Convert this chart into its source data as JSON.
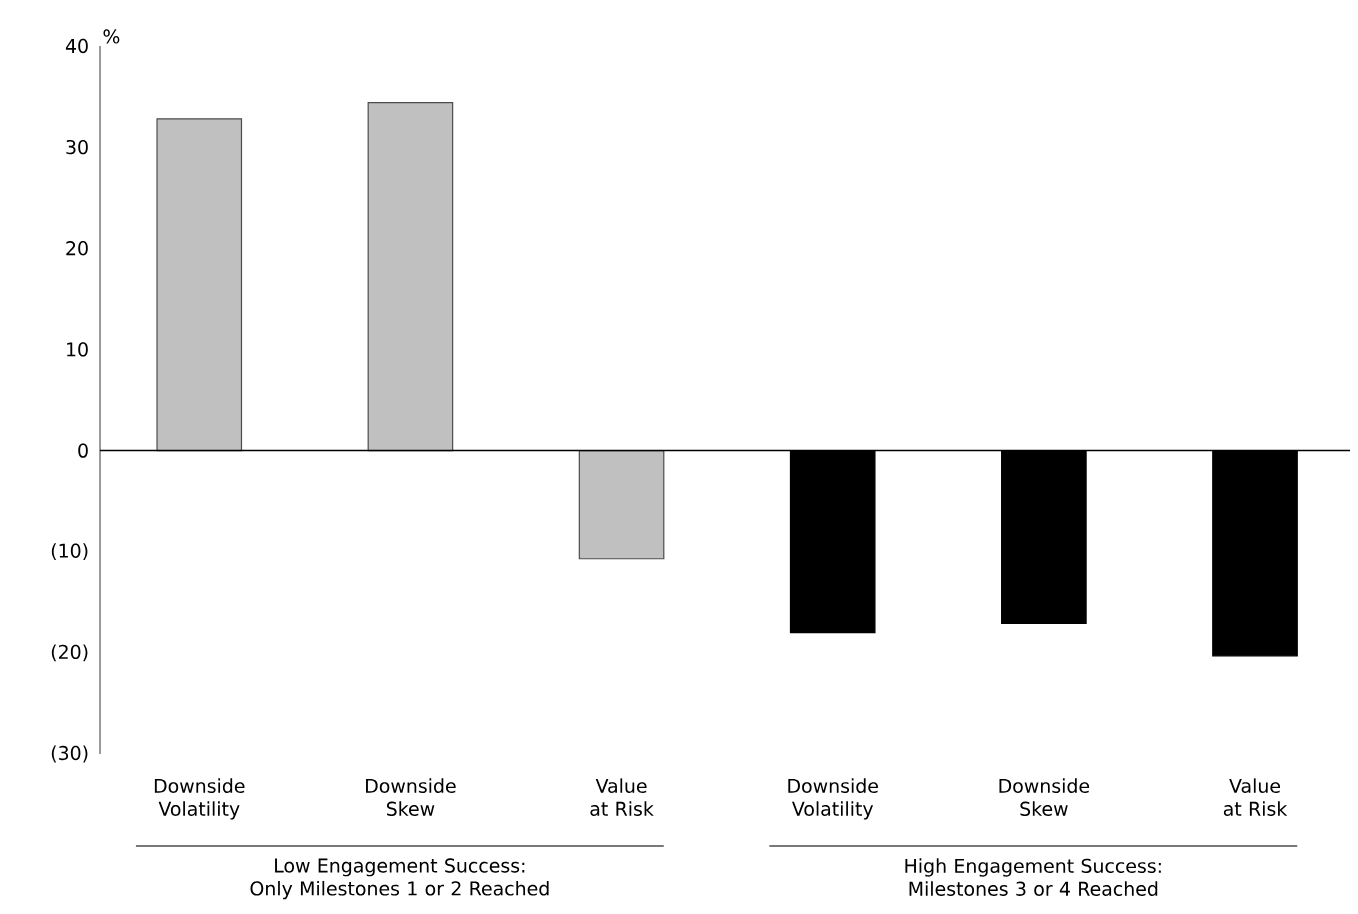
{
  "chart_data": {
    "type": "bar",
    "ylabel": "%",
    "categories": [
      "Downside Volatility",
      "Downside Skew",
      "Value at Risk",
      "Downside Volatility",
      "Downside Skew",
      "Value at Risk"
    ],
    "values": [
      32.8,
      34.4,
      -10.7,
      -18.0,
      -17.1,
      -20.3
    ],
    "colors": [
      "#c0c0c0",
      "#c0c0c0",
      "#c0c0c0",
      "#000000",
      "#000000",
      "#000000"
    ],
    "ylim": [
      -30,
      40
    ],
    "yticks": [
      {
        "value": -30,
        "label": "(30)"
      },
      {
        "value": -20,
        "label": "(20)"
      },
      {
        "value": -10,
        "label": "(10)"
      },
      0,
      10,
      20,
      30,
      40
    ],
    "annotations": [
      "Low Engagement Success: Only Milestones 1 or 2 Reached",
      "High Engagement Success: Milestones 3 or 4 Reached"
    ]
  }
}
